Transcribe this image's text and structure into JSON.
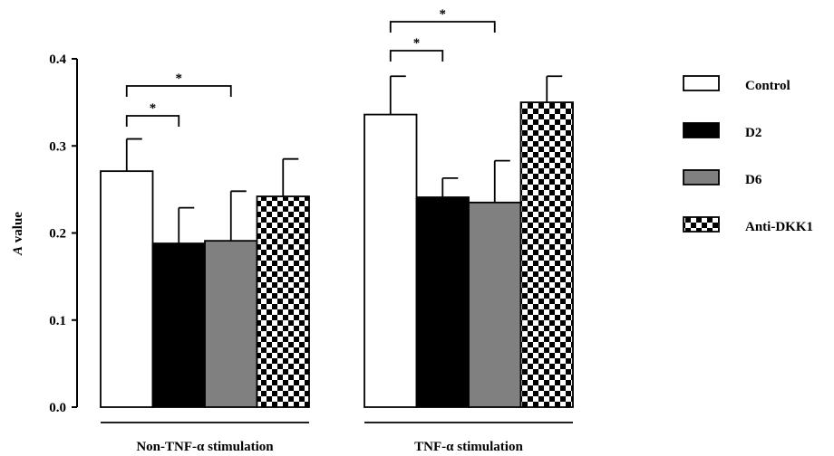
{
  "chart_data": {
    "type": "bar",
    "title": "",
    "xlabel": "",
    "ylabel_italic": "A",
    "ylabel_rest": " value",
    "ylim": [
      0,
      0.4
    ],
    "yticks": [
      "0.0",
      "0.1",
      "0.2",
      "0.3",
      "0.4"
    ],
    "categories": [
      "Non-TNF-α stimulation",
      "TNF-α stimulation"
    ],
    "series": [
      {
        "name": "Control",
        "pattern": "white",
        "values": [
          0.271,
          0.336
        ],
        "errors": [
          0.037,
          0.044
        ]
      },
      {
        "name": "D2",
        "pattern": "black",
        "values": [
          0.188,
          0.241
        ],
        "errors": [
          0.041,
          0.022
        ]
      },
      {
        "name": "D6",
        "pattern": "gray",
        "values": [
          0.191,
          0.235
        ],
        "errors": [
          0.057,
          0.048
        ]
      },
      {
        "name": "Anti-DKK1",
        "pattern": "checker",
        "values": [
          0.242,
          0.35
        ],
        "errors": [
          0.043,
          0.03
        ]
      }
    ],
    "significance": [
      {
        "group": 0,
        "from": 0,
        "to": 1,
        "label": "*"
      },
      {
        "group": 0,
        "from": 0,
        "to": 2,
        "label": "*"
      },
      {
        "group": 1,
        "from": 0,
        "to": 1,
        "label": "*"
      },
      {
        "group": 1,
        "from": 0,
        "to": 2,
        "label": "*"
      }
    ],
    "legend_position": "right",
    "grid": false
  },
  "colors": {
    "black": "#000000",
    "gray": "#808080",
    "white": "#ffffff"
  }
}
